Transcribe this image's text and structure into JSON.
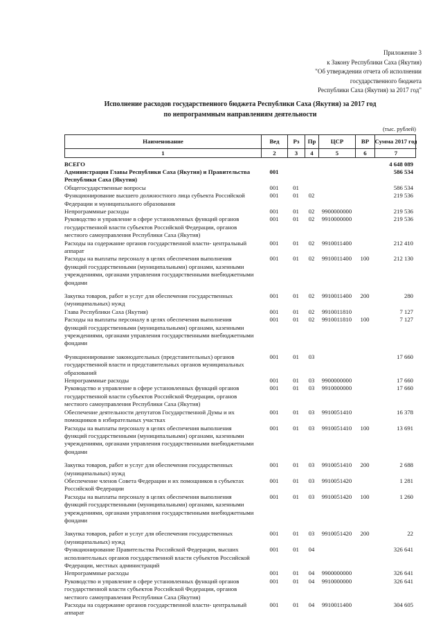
{
  "header": {
    "appendix_lines": [
      "Приложение 3",
      "к Закону Республики Саха (Якутия)",
      "\"Об утверждении отчета об исполнении",
      "государственного бюджета",
      "Республики Саха (Якутия) за 2017 год\""
    ],
    "title_line1": "Исполнение расходов государственного бюджета Республики Саха (Якутия) за 2017 год",
    "title_line2": "по непрограммным направлениям деятельности",
    "units_note": "(тыс. рублей)"
  },
  "table": {
    "headers": [
      "Наименование",
      "Вед",
      "Рз",
      "Пр",
      "ЦСР",
      "ВР",
      "Сумма 2017 год"
    ],
    "column_numbers": [
      "1",
      "2",
      "3",
      "4",
      "5",
      "6",
      "7"
    ],
    "rows": [
      {
        "name": "ВСЕГО",
        "ved": "",
        "rz": "",
        "pr": "",
        "csr": "",
        "vr": "",
        "sum": "4 648 089",
        "bold": true
      },
      {
        "name": "Администрация Главы Республики Саха (Якутия) и Правительства Республики Саха (Якутия)",
        "ved": "001",
        "rz": "",
        "pr": "",
        "csr": "",
        "vr": "",
        "sum": "586 534",
        "bold": true
      },
      {
        "name": "Общегосударственные вопросы",
        "ved": "001",
        "rz": "01",
        "pr": "",
        "csr": "",
        "vr": "",
        "sum": "586 534"
      },
      {
        "name": "Функционирование высшего должностного лица субъекта Российской Федерации и муниципального образования",
        "ved": "001",
        "rz": "01",
        "pr": "02",
        "csr": "",
        "vr": "",
        "sum": "219 536"
      },
      {
        "name": "Непрограммные расходы",
        "ved": "001",
        "rz": "01",
        "pr": "02",
        "csr": "9900000000",
        "vr": "",
        "sum": "219 536"
      },
      {
        "name": "Руководство и управление в сфере установленных функций органов государственной власти субъектов Российской Федерации, органов местного самоуправления Республики Саха (Якутия)",
        "ved": "001",
        "rz": "01",
        "pr": "02",
        "csr": "9910000000",
        "vr": "",
        "sum": "219 536"
      },
      {
        "name": "Расходы на содержание органов государственной власти- центральный аппарат",
        "ved": "001",
        "rz": "01",
        "pr": "02",
        "csr": "9910011400",
        "vr": "",
        "sum": "212 410"
      },
      {
        "name": "Расходы на выплаты персоналу в целях обеспечения выполнения функций государственными (муниципальными) органами, казенными учреждениями, органами управления государственными внебюджетными фондами",
        "ved": "001",
        "rz": "01",
        "pr": "02",
        "csr": "9910011400",
        "vr": "100",
        "sum": "212 130"
      },
      {
        "name": "Закупка товаров, работ и услуг для обеспечения государственных (муниципальных) нужд",
        "ved": "001",
        "rz": "01",
        "pr": "02",
        "csr": "9910011400",
        "vr": "200",
        "sum": "280",
        "gap": true
      },
      {
        "name": "Глава Республики Саха (Якутия)",
        "ved": "001",
        "rz": "01",
        "pr": "02",
        "csr": "9910011810",
        "vr": "",
        "sum": "7 127"
      },
      {
        "name": "Расходы на выплаты персоналу в целях обеспечения выполнения функций государственными (муниципальными) органами, казенными учреждениями, органами управления государственными внебюджетными фондами",
        "ved": "001",
        "rz": "01",
        "pr": "02",
        "csr": "9910011810",
        "vr": "100",
        "sum": "7 127"
      },
      {
        "name": "Функционирование законодательных (представительных) органов государственной власти и представительных органов муниципальных образований",
        "ved": "001",
        "rz": "01",
        "pr": "03",
        "csr": "",
        "vr": "",
        "sum": "17 660",
        "gap": true
      },
      {
        "name": "Непрограммные расходы",
        "ved": "001",
        "rz": "01",
        "pr": "03",
        "csr": "9900000000",
        "vr": "",
        "sum": "17 660"
      },
      {
        "name": "Руководство и управление в сфере установленных функций органов государственной власти субъектов Российской Федерации, органов местного самоуправления Республики Саха (Якутия)",
        "ved": "001",
        "rz": "01",
        "pr": "03",
        "csr": "9910000000",
        "vr": "",
        "sum": "17 660"
      },
      {
        "name": "Обеспечение деятельности депутатов Государственной Думы и их помощников в избирательных участках",
        "ved": "001",
        "rz": "01",
        "pr": "03",
        "csr": "9910051410",
        "vr": "",
        "sum": "16 378"
      },
      {
        "name": "Расходы на выплаты персоналу в целях обеспечения выполнения функций государственными (муниципальными) органами, казенными учреждениями, органами управления государственными внебюджетными фондами",
        "ved": "001",
        "rz": "01",
        "pr": "03",
        "csr": "9910051410",
        "vr": "100",
        "sum": "13 691"
      },
      {
        "name": "Закупка товаров, работ и услуг для обеспечения государственных (муниципальных) нужд",
        "ved": "001",
        "rz": "01",
        "pr": "03",
        "csr": "9910051410",
        "vr": "200",
        "sum": "2 688",
        "gap": true
      },
      {
        "name": "Обеспечение членов Совета Федерации и их помощников в субъектах Российской Федерации",
        "ved": "001",
        "rz": "01",
        "pr": "03",
        "csr": "9910051420",
        "vr": "",
        "sum": "1 281"
      },
      {
        "name": "Расходы на выплаты персоналу в целях обеспечения выполнения функций государственными (муниципальными) органами, казенными учреждениями, органами управления государственными внебюджетными фондами",
        "ved": "001",
        "rz": "01",
        "pr": "03",
        "csr": "9910051420",
        "vr": "100",
        "sum": "1 260"
      },
      {
        "name": "Закупка товаров, работ и услуг для обеспечения государственных (муниципальных) нужд",
        "ved": "001",
        "rz": "01",
        "pr": "03",
        "csr": "9910051420",
        "vr": "200",
        "sum": "22",
        "gap": true
      },
      {
        "name": "Функционирование Правительства Российской Федерации, высших исполнительных органов государственной власти субъектов Российской Федерации, местных администраций",
        "ved": "001",
        "rz": "01",
        "pr": "04",
        "csr": "",
        "vr": "",
        "sum": "326 641"
      },
      {
        "name": "Непрограммные расходы",
        "ved": "001",
        "rz": "01",
        "pr": "04",
        "csr": "9900000000",
        "vr": "",
        "sum": "326 641"
      },
      {
        "name": "Руководство и управление в сфере установленных функций органов государственной власти субъектов Российской Федерации, органов местного самоуправления Республики Саха (Якутия)",
        "ved": "001",
        "rz": "01",
        "pr": "04",
        "csr": "9910000000",
        "vr": "",
        "sum": "326 641"
      },
      {
        "name": "Расходы на содержание органов государственной власти- центральный аппарат",
        "ved": "001",
        "rz": "01",
        "pr": "04",
        "csr": "9910011400",
        "vr": "",
        "sum": "304 605"
      }
    ]
  }
}
